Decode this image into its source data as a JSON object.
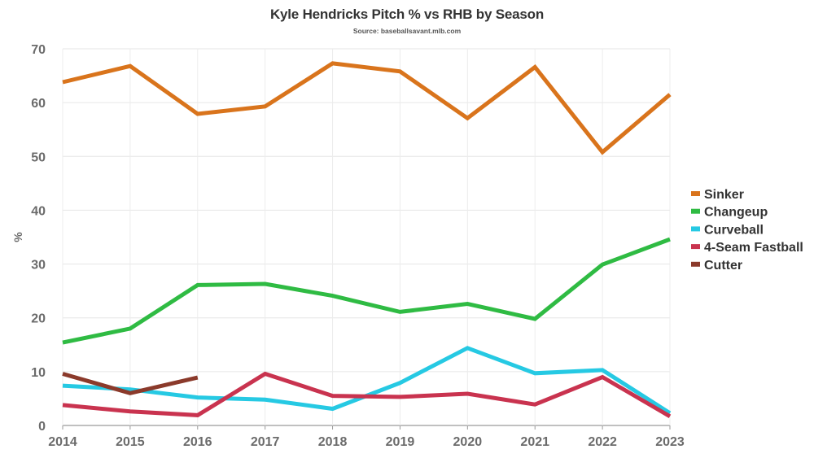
{
  "chart_data": {
    "type": "line",
    "title": "Kyle Hendricks Pitch % vs RHB by Season",
    "subtitle": "Source: baseballsavant.mlb.com",
    "xlabel": "",
    "ylabel": "%",
    "ylim": [
      0,
      70
    ],
    "yticks": [
      "0",
      "10",
      "20",
      "30",
      "40",
      "50",
      "60",
      "70"
    ],
    "grid": true,
    "legend_position": "right",
    "categories": [
      "2014",
      "2015",
      "2016",
      "2017",
      "2018",
      "2019",
      "2020",
      "2021",
      "2022",
      "2023"
    ],
    "series": [
      {
        "name": "Sinker",
        "color": "#d9741c",
        "values": [
          63.8,
          66.8,
          57.9,
          59.3,
          67.3,
          65.8,
          57.1,
          66.6,
          50.8,
          61.5
        ]
      },
      {
        "name": "Changeup",
        "color": "#2fbb43",
        "values": [
          15.4,
          18.0,
          26.1,
          26.3,
          24.1,
          21.1,
          22.6,
          19.8,
          29.9,
          34.6
        ]
      },
      {
        "name": "Curveball",
        "color": "#26c9e3",
        "values": [
          7.4,
          6.7,
          5.2,
          4.8,
          3.1,
          7.9,
          14.4,
          9.7,
          10.3,
          2.3
        ]
      },
      {
        "name": "4-Seam Fastball",
        "color": "#c9334f",
        "values": [
          3.8,
          2.6,
          1.9,
          9.6,
          5.5,
          5.3,
          5.9,
          3.9,
          9.0,
          1.7
        ]
      },
      {
        "name": "Cutter",
        "color": "#8b3a2b",
        "values": [
          9.6,
          6.0,
          8.9,
          null,
          null,
          null,
          null,
          null,
          null,
          null
        ]
      }
    ]
  }
}
